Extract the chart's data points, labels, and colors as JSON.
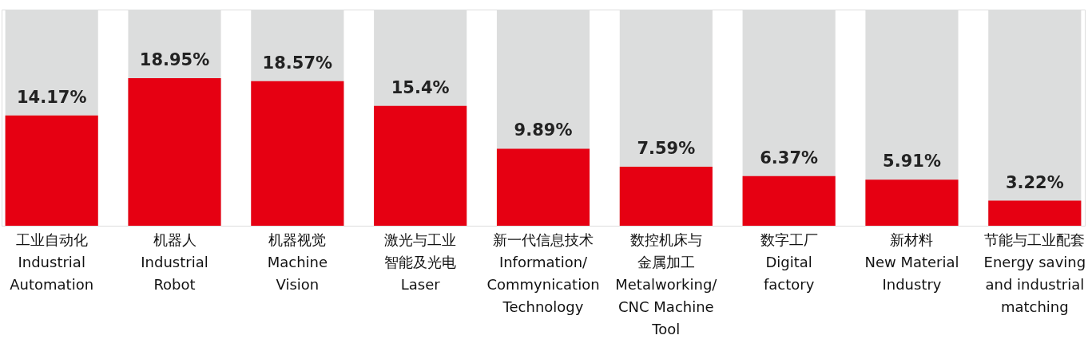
{
  "chart_data": {
    "type": "bar",
    "categories": [
      "工业自动化\nIndustrial\nAutomation",
      "机器人\nIndustrial\nRobot",
      "机器视觉\nMachine\nVision",
      "激光与工业智能及光电\nLaser",
      "新一代信息技术\nInformation/\nCommynication\nTechnology",
      "数控机床与金属加工\nMetalworking/\nCNC Machine\nTool",
      "数字工厂\nDigital\nfactory",
      "新材料\nNew Material\nIndustry",
      "节能与工业配套\nEnergy saving\nand industrial\nmatching"
    ],
    "series": [
      {
        "color": "#e60012",
        "values": [
          14.17,
          18.95,
          18.57,
          15.4,
          9.89,
          7.59,
          6.37,
          5.91,
          3.22
        ],
        "value_labels": [
          "14.17%",
          "18.95%",
          "18.57%",
          "15.4%",
          "9.89%",
          "7.59%",
          "6.37%",
          "5.91%",
          "3.22%"
        ]
      }
    ],
    "tick_labels": "x"
  }
}
